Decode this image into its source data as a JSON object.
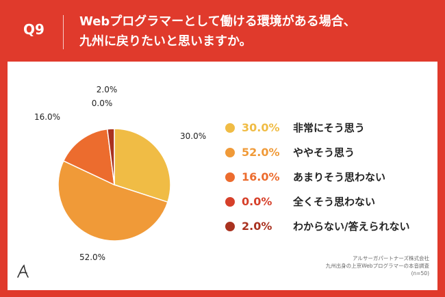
{
  "header": {
    "question_label": "Q9",
    "title_line1": "Webプログラマーとして働ける環境がある場合、",
    "title_line2": "九州に戻りたいと思いますか。"
  },
  "colors": {
    "background": "#e03a2c",
    "panel": "#ffffff"
  },
  "chart_data": {
    "type": "pie",
    "title": "",
    "start_angle_deg": 0,
    "direction": "clockwise",
    "slices": [
      {
        "label": "非常にそう思う",
        "value": 30.0,
        "display": "30.0%",
        "color": "#f0bc45"
      },
      {
        "label": "ややそう思う",
        "value": 52.0,
        "display": "52.0%",
        "color": "#f09a38"
      },
      {
        "label": "あまりそう思わない",
        "value": 16.0,
        "display": "16.0%",
        "color": "#ec6c2e"
      },
      {
        "label": "全くそう思わない",
        "value": 0.0,
        "display": "0.0%",
        "color": "#d6402a"
      },
      {
        "label": "わからない/答えられない",
        "value": 2.0,
        "display": "2.0%",
        "color": "#a93220"
      }
    ],
    "legend_position": "right"
  },
  "footer": {
    "source_line1": "アルサーガパートナーズ株式会社",
    "source_line2": "九州出身の上京Webプログラマーの本音調査",
    "source_line3": "(n=50)"
  }
}
